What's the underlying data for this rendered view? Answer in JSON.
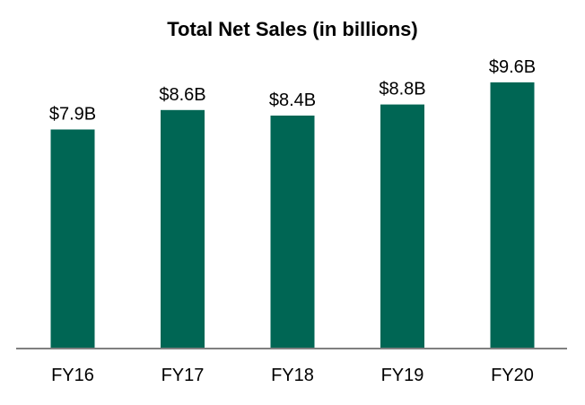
{
  "chart_data": {
    "type": "bar",
    "title": "Total Net Sales (in billions)",
    "categories": [
      "FY16",
      "FY17",
      "FY18",
      "FY19",
      "FY20"
    ],
    "values": [
      7.9,
      8.6,
      8.4,
      8.8,
      9.6
    ],
    "data_labels": [
      "$7.9B",
      "$8.6B",
      "$8.4B",
      "$8.8B",
      "$9.6B"
    ],
    "xlabel": "",
    "ylabel": "",
    "ylim": [
      0,
      10.5
    ],
    "grid": false,
    "legend": "none",
    "bar_color": "#006654",
    "axis_color": "#808080"
  }
}
